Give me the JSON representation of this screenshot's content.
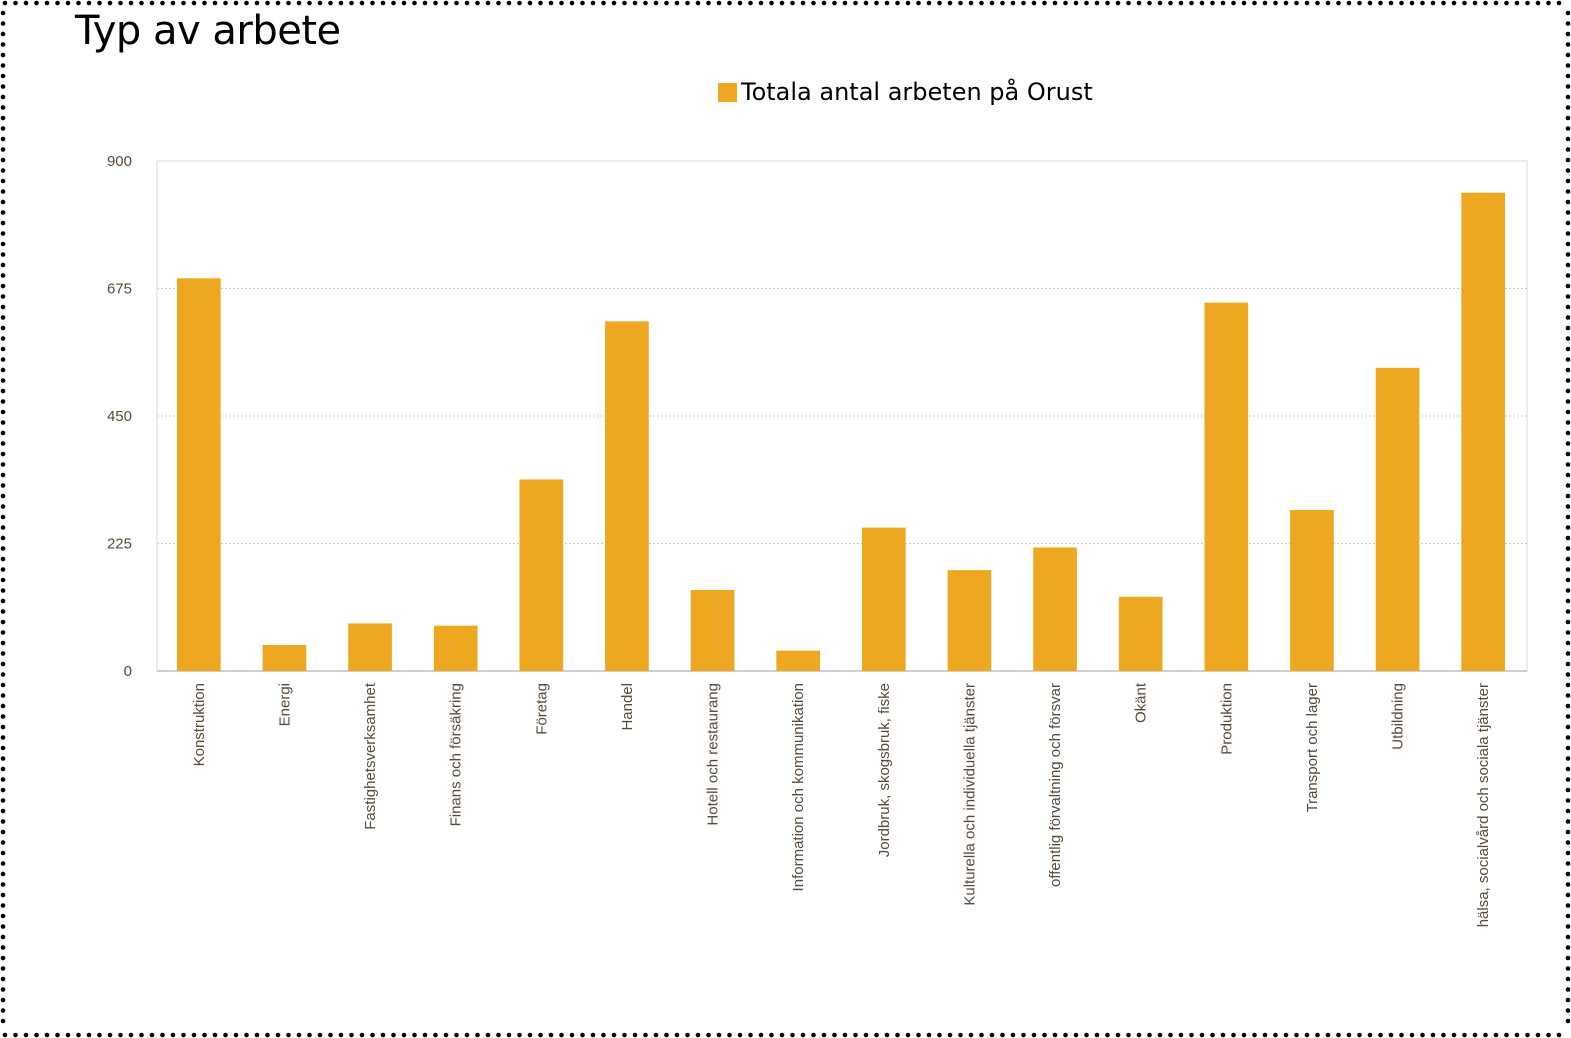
{
  "title": "Typ av arbete",
  "colors": {
    "bar": "#EEA720",
    "axis_text": "#5A4A3A",
    "grid": "#C8C8C8",
    "border": "#000000"
  },
  "chart_data": {
    "type": "bar",
    "title": "Typ av arbete",
    "xlabel": "",
    "ylabel": "",
    "ylim": [
      0,
      900
    ],
    "yticks": [
      "0",
      "225",
      "450",
      "675",
      "900"
    ],
    "grid": true,
    "legend_position": "top-center",
    "categories": [
      "Konstruktion",
      "Energi",
      "Fastighetsverksamhet",
      "Finans och försäkring",
      "Företag",
      "Handel",
      "Hotell och restaurang",
      "Information och kommunikation",
      "Jordbruk, skogsbruk, fiske",
      "Kulturella och individuella tjänster",
      "offentlig förvaltning och försvar",
      "Okänt",
      "Produktion",
      "Transport och lager",
      "Utbildning",
      "hälsa, socialvård och sociala tjänster"
    ],
    "series": [
      {
        "name": "Totala antal arbeten på Orust",
        "values": [
          693,
          46,
          84,
          80,
          338,
          617,
          143,
          36,
          253,
          178,
          218,
          131,
          650,
          284,
          535,
          844
        ]
      }
    ]
  }
}
